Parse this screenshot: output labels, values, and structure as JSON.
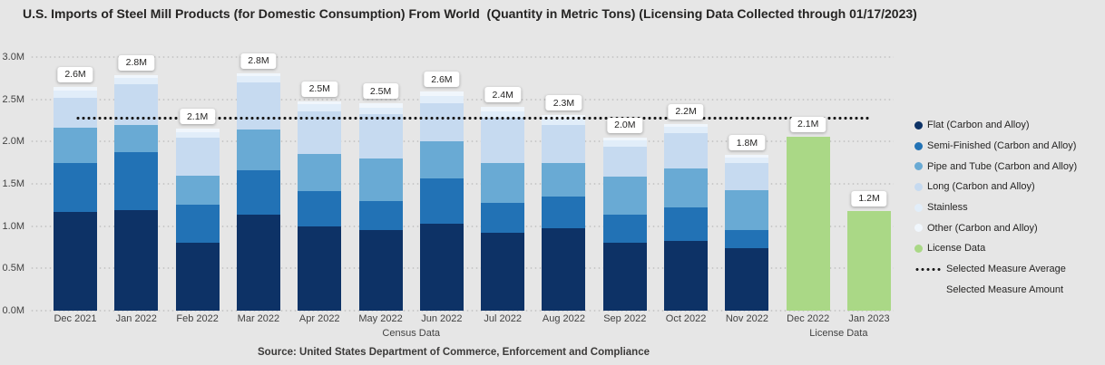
{
  "title": "U.S. Imports of Steel Mill Products (for Domestic Consumption) From World  (Quantity in Metric Tons) (Licensing Data Collected through 01/17/2023)",
  "source": "Source: United States Department of Commerce, Enforcement and Compliance",
  "colors": {
    "background": "#e6e6e6",
    "title_text": "#252423",
    "axis_text": "#424242",
    "average_line": "#1b1b1b",
    "label_box_bg": "#ffffff"
  },
  "legend": {
    "items": [
      {
        "label": "Flat (Carbon and Alloy)",
        "marker": "circle",
        "color": "#0d3266"
      },
      {
        "label": "Semi-Finished (Carbon and Alloy)",
        "marker": "circle",
        "color": "#2272b5"
      },
      {
        "label": "Pipe and Tube (Carbon and Alloy)",
        "marker": "circle",
        "color": "#69aad4"
      },
      {
        "label": "Long (Carbon and Alloy)",
        "marker": "circle",
        "color": "#c6daf0"
      },
      {
        "label": "Stainless",
        "marker": "circle",
        "color": "#e1edf9"
      },
      {
        "label": "Other (Carbon and Alloy)",
        "marker": "circle",
        "color": "#f0f6fc"
      },
      {
        "label": "License Data",
        "marker": "circle",
        "color": "#aad886"
      },
      {
        "label": "Selected Measure Average",
        "marker": "dotted-line",
        "color": "#1b1b1b"
      },
      {
        "label": "Selected Measure Amount",
        "marker": "none",
        "color": ""
      }
    ]
  },
  "chart_data": {
    "type": "bar",
    "subtype": "stacked",
    "title": "U.S. Imports of Steel Mill Products (for Domestic Consumption) From World (Quantity in Metric Tons) (Licensing Data Collected through 01/17/2023)",
    "xlabel": "",
    "ylabel": "",
    "units": "millions of metric tons",
    "ylim": [
      0,
      3.0
    ],
    "y_ticks": [
      "0.0M",
      "0.5M",
      "1.0M",
      "1.5M",
      "2.0M",
      "2.5M",
      "3.0M"
    ],
    "grid": "horizontal-dotted",
    "legend_position": "right",
    "categories": [
      "Dec 2021",
      "Jan 2022",
      "Feb 2022",
      "Mar 2022",
      "Apr 2022",
      "May 2022",
      "Jun 2022",
      "Jul 2022",
      "Aug 2022",
      "Sep 2022",
      "Oct 2022",
      "Nov 2022",
      "Dec 2022",
      "Jan 2023"
    ],
    "group_labels": [
      {
        "label": "Census Data",
        "span": [
          0,
          11
        ]
      },
      {
        "label": "License Data",
        "span": [
          12,
          13
        ]
      }
    ],
    "series": [
      {
        "name": "Flat (Carbon and Alloy)",
        "color": "#0d3266",
        "values": [
          1.17,
          1.19,
          0.8,
          1.14,
          1.0,
          0.95,
          1.03,
          0.92,
          0.98,
          0.8,
          0.83,
          0.74,
          0,
          0
        ]
      },
      {
        "name": "Semi-Finished (Carbon and Alloy)",
        "color": "#2272b5",
        "values": [
          0.58,
          0.68,
          0.45,
          0.52,
          0.41,
          0.35,
          0.53,
          0.35,
          0.37,
          0.34,
          0.39,
          0.21,
          0,
          0
        ]
      },
      {
        "name": "Pipe and Tube (Carbon and Alloy)",
        "color": "#69aad4",
        "values": [
          0.41,
          0.33,
          0.35,
          0.48,
          0.44,
          0.5,
          0.44,
          0.48,
          0.4,
          0.45,
          0.46,
          0.48,
          0,
          0
        ]
      },
      {
        "name": "Long (Carbon and Alloy)",
        "color": "#c6daf0",
        "values": [
          0.36,
          0.48,
          0.45,
          0.56,
          0.51,
          0.52,
          0.45,
          0.53,
          0.45,
          0.35,
          0.42,
          0.32,
          0,
          0
        ]
      },
      {
        "name": "Stainless",
        "color": "#e1edf9",
        "values": [
          0.08,
          0.07,
          0.06,
          0.07,
          0.08,
          0.08,
          0.09,
          0.08,
          0.07,
          0.07,
          0.07,
          0.06,
          0,
          0
        ]
      },
      {
        "name": "Other (Carbon and Alloy)",
        "color": "#f0f6fc",
        "values": [
          0.05,
          0.04,
          0.04,
          0.04,
          0.04,
          0.05,
          0.05,
          0.05,
          0.04,
          0.04,
          0.04,
          0.03,
          0,
          0
        ]
      },
      {
        "name": "License Data",
        "color": "#aad886",
        "values": [
          0,
          0,
          0,
          0,
          0,
          0,
          0,
          0,
          0,
          0,
          0,
          0,
          2.06,
          1.18
        ]
      }
    ],
    "total_labels": [
      "2.6M",
      "2.8M",
      "2.1M",
      "2.8M",
      "2.5M",
      "2.5M",
      "2.6M",
      "2.4M",
      "2.3M",
      "2.0M",
      "2.2M",
      "1.8M",
      "2.1M",
      "1.2M"
    ],
    "average_line": {
      "label": "Selected Measure Average",
      "value": 2.28,
      "value_label": "2.28M"
    }
  }
}
